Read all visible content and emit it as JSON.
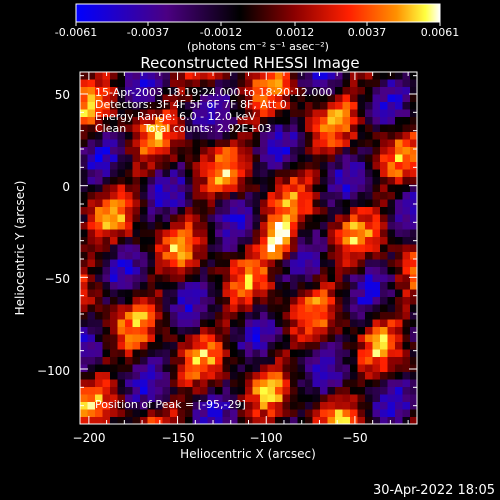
{
  "colorbar": {
    "ticks": [
      "-0.0061",
      "-0.0037",
      "-0.0012",
      "0.0012",
      "0.0037",
      "0.0061"
    ],
    "units_label": "(photons cm⁻² s⁻¹ asec⁻²)",
    "colors": [
      "#0000ff",
      "#4b0082",
      "#000000",
      "#8b0000",
      "#ff0000",
      "#ff8c00",
      "#ffff00",
      "#ffffff"
    ]
  },
  "chart_data": {
    "type": "heatmap",
    "title": "Reconstructed RHESSI Image",
    "xlabel": "Heliocentric X (arcsec)",
    "ylabel": "Heliocentric Y (arcsec)",
    "xlim": [
      -205,
      -15
    ],
    "ylim": [
      -130,
      62
    ],
    "x_ticks": [
      -200,
      -150,
      -100,
      -50
    ],
    "y_ticks": [
      50,
      0,
      -50,
      -100
    ],
    "x_tick_labels": [
      "−200",
      "−150",
      "−100",
      "−50"
    ],
    "y_tick_labels": [
      "50",
      "0",
      "−50",
      "−100"
    ],
    "peak": [
      -95,
      -29
    ],
    "value_range": [
      -0.0061,
      0.0061
    ]
  },
  "annotations": {
    "line1": "15-Apr-2003 18:19:24.000 to 18:20:12.000",
    "line2": "Detectors: 3F 4F 5F 6F 7F 8F, Att 0",
    "line3": "Energy Range: 6.0 - 12.0 keV",
    "line4": "Clean     Total counts: 2.92E+03",
    "peak": "Position of Peak = [-95,-29]"
  },
  "footer": {
    "timestamp": "30-Apr-2022 18:05"
  }
}
